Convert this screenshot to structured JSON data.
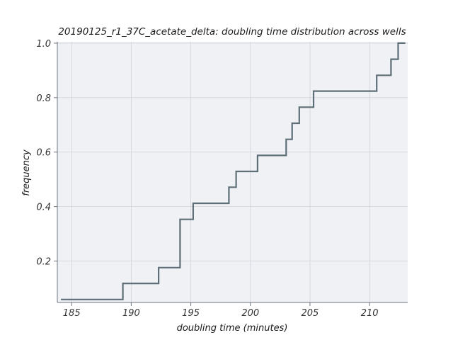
{
  "chart_data": {
    "type": "line",
    "subtype": "ecdf-step",
    "title": "20190125_r1_37C_acetate_delta: doubling time distribution across wells",
    "xlabel": "doubling time (minutes)",
    "ylabel": "frequency",
    "xlim": [
      183.8,
      213.2
    ],
    "ylim": [
      0.048,
      1.005
    ],
    "xticks": [
      185,
      190,
      195,
      200,
      205,
      210
    ],
    "yticks": [
      0.2,
      0.4,
      0.6,
      0.8,
      1.0
    ],
    "ytick_labels": [
      "0.2",
      "0.4",
      "0.6",
      "0.8",
      "1.0"
    ],
    "grid": true,
    "colors": {
      "line": "#5f6f78",
      "plot_background": "#f0f1f5",
      "grid": "#d0d3da"
    },
    "series": [
      {
        "x": [
          184.1,
          189.3,
          192.3,
          194.1,
          195.2,
          198.2,
          198.8,
          200.6,
          203.0,
          203.5,
          204.1,
          205.3,
          210.6,
          211.8,
          212.4,
          213.0
        ],
        "y": [
          0.059,
          0.118,
          0.176,
          0.353,
          0.412,
          0.471,
          0.529,
          0.588,
          0.647,
          0.706,
          0.765,
          0.824,
          0.882,
          0.941,
          1.0,
          1.0
        ]
      }
    ]
  }
}
